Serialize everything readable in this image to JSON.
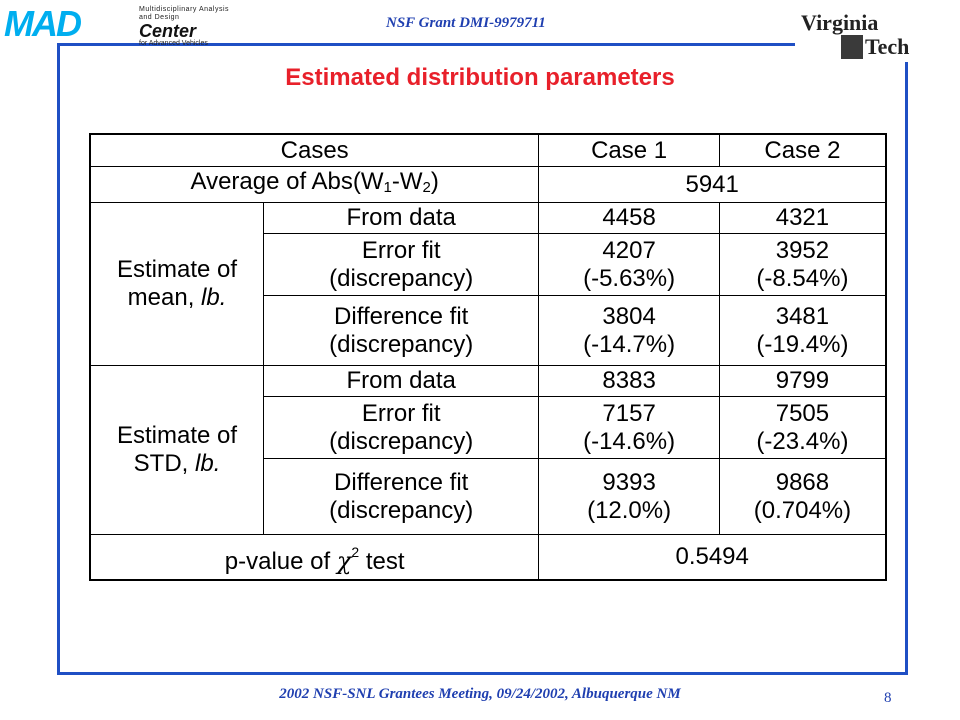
{
  "header": {
    "mad_logo": {
      "letters": "MAD",
      "line1": "Multidisciplinary Analysis and Design",
      "line2": "Center",
      "line3": "for Advanced Vehicles"
    },
    "grant": "NSF Grant DMI-9979711",
    "vt_logo": {
      "word1": "Virginia",
      "word2": "Tech"
    }
  },
  "title": "Estimated distribution parameters",
  "table": {
    "header": {
      "cases": "Cases",
      "case1": "Case 1",
      "case2": "Case 2"
    },
    "average": {
      "label_pre": "Average of Abs(W",
      "sub1": "1",
      "label_mid": "-W",
      "sub2": "2",
      "label_post": ")",
      "value": "5941"
    },
    "mean": {
      "label_line1": "Estimate of",
      "label_line2": "mean, ",
      "label_unit": "lb.",
      "rows": [
        {
          "method": "From data",
          "method2": "",
          "case1": "4458",
          "case1b": "",
          "case2": "4321",
          "case2b": ""
        },
        {
          "method": "Error fit",
          "method2": "(discrepancy)",
          "case1": "4207",
          "case1b": "(-5.63%)",
          "case2": "3952",
          "case2b": "(-8.54%)"
        },
        {
          "method": "Difference fit",
          "method2": "(discrepancy)",
          "case1": "3804",
          "case1b": "(-14.7%)",
          "case2": "3481",
          "case2b": "(-19.4%)"
        }
      ]
    },
    "std": {
      "label_line1": "Estimate of",
      "label_line2": "STD, ",
      "label_unit": "lb.",
      "rows": [
        {
          "method": "From data",
          "method2": "",
          "case1": "8383",
          "case1b": "",
          "case2": "9799",
          "case2b": ""
        },
        {
          "method": "Error fit",
          "method2": "(discrepancy)",
          "case1": "7157",
          "case1b": "(-14.6%)",
          "case2": "7505",
          "case2b": "(-23.4%)"
        },
        {
          "method": "Difference fit",
          "method2": "(discrepancy)",
          "case1": "9393",
          "case1b": "(12.0%)",
          "case2": "9868",
          "case2b": "(0.704%)"
        }
      ]
    },
    "pvalue": {
      "label_pre": "p-value of ",
      "chi": "χ",
      "sup": "2",
      "label_post": " test",
      "value": "0.5494"
    }
  },
  "footer": "2002 NSF-SNL Grantees Meeting, 09/24/2002, Albuquerque NM",
  "page_number": "8",
  "colors": {
    "frame": "#1f4fc4",
    "title": "#e8202a",
    "header_text": "#1f3fb0",
    "logo": "#00aeef"
  }
}
